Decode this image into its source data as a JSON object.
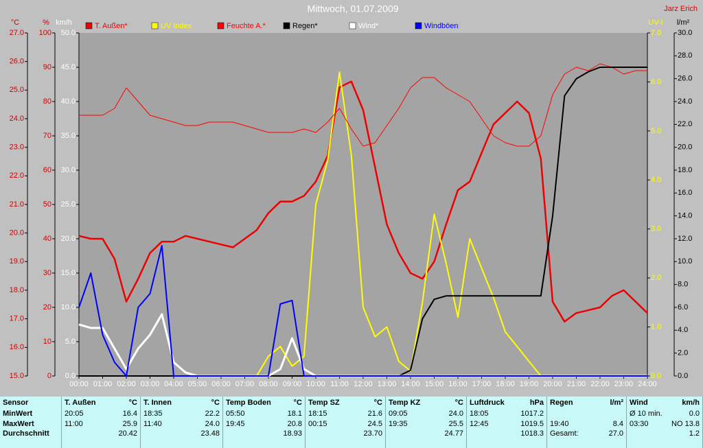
{
  "chart_data": {
    "type": "line",
    "title": "Mittwoch, 01.07.2009",
    "author": "Jarz Erich",
    "xlim": [
      0,
      24
    ],
    "xticks": [
      {
        "value": 0,
        "label": "00:00"
      },
      {
        "value": 1,
        "label": "01:00"
      },
      {
        "value": 2,
        "label": "02:00"
      },
      {
        "value": 3,
        "label": "03:00"
      },
      {
        "value": 4,
        "label": "04:00"
      },
      {
        "value": 5,
        "label": "05:00"
      },
      {
        "value": 6,
        "label": "06:00"
      },
      {
        "value": 7,
        "label": "07:00"
      },
      {
        "value": 8,
        "label": "08:00"
      },
      {
        "value": 9,
        "label": "09:00"
      },
      {
        "value": 10,
        "label": "10:00"
      },
      {
        "value": 11,
        "label": "11:00"
      },
      {
        "value": 12,
        "label": "12:00"
      },
      {
        "value": 13,
        "label": "13:00"
      },
      {
        "value": 14,
        "label": "14:00"
      },
      {
        "value": 15,
        "label": "15:00"
      },
      {
        "value": 16,
        "label": "16:00"
      },
      {
        "value": 17,
        "label": "17:00"
      },
      {
        "value": 18,
        "label": "18:00"
      },
      {
        "value": 19,
        "label": "19:00"
      },
      {
        "value": 20,
        "label": "20:00"
      },
      {
        "value": 21,
        "label": "21:00"
      },
      {
        "value": 22,
        "label": "22:00"
      },
      {
        "value": 23,
        "label": "23:00"
      },
      {
        "value": 24,
        "label": "24:00"
      }
    ],
    "axes": [
      {
        "label": "°C",
        "color": "#d00000",
        "lim": [
          15,
          27
        ],
        "ticks": [
          {
            "value": 15,
            "label": "15.0"
          },
          {
            "value": 16,
            "label": "16.0"
          },
          {
            "value": 17,
            "label": "17.0"
          },
          {
            "value": 18,
            "label": "18.0"
          },
          {
            "value": 19,
            "label": "19.0"
          },
          {
            "value": 20,
            "label": "20.0"
          },
          {
            "value": 21,
            "label": "21.0"
          },
          {
            "value": 22,
            "label": "22.0"
          },
          {
            "value": 23,
            "label": "23.0"
          },
          {
            "value": 24,
            "label": "24.0"
          },
          {
            "value": 25,
            "label": "25.0"
          },
          {
            "value": 26,
            "label": "26.0"
          },
          {
            "value": 27,
            "label": "27.0"
          }
        ]
      },
      {
        "label": "%",
        "color": "#d00000",
        "lim": [
          0,
          100
        ],
        "ticks": [
          0,
          10,
          20,
          30,
          40,
          50,
          60,
          70,
          80,
          90,
          100
        ]
      },
      {
        "label": "km/h",
        "color": "#ffffff",
        "lim": [
          0,
          50
        ],
        "ticks": [
          {
            "value": 0,
            "label": "0.0"
          },
          {
            "value": 5,
            "label": "5.0"
          },
          {
            "value": 10,
            "label": "10.0"
          },
          {
            "value": 15,
            "label": "15.0"
          },
          {
            "value": 20,
            "label": "20.0"
          },
          {
            "value": 25,
            "label": "25.0"
          },
          {
            "value": 30,
            "label": "30.0"
          },
          {
            "value": 35,
            "label": "35.0"
          },
          {
            "value": 40,
            "label": "40.0"
          },
          {
            "value": 45,
            "label": "45.0"
          },
          {
            "value": 50,
            "label": "50.0"
          }
        ]
      },
      {
        "label": "UV-I",
        "color": "#ffff00",
        "lim": [
          0,
          7
        ],
        "ticks": [
          {
            "value": 0,
            "label": "0.0"
          },
          {
            "value": 1,
            "label": "1.0"
          },
          {
            "value": 2,
            "label": "2.0"
          },
          {
            "value": 3,
            "label": "3.0"
          },
          {
            "value": 4,
            "label": "4.0"
          },
          {
            "value": 5,
            "label": "5.0"
          },
          {
            "value": 6,
            "label": "6.0"
          },
          {
            "value": 7,
            "label": "7.0"
          }
        ]
      },
      {
        "label": "l/m²",
        "color": "#000000",
        "lim": [
          0,
          30
        ],
        "ticks": [
          {
            "value": 0,
            "label": "0.0"
          },
          {
            "value": 2,
            "label": "2.0"
          },
          {
            "value": 4,
            "label": "4.0"
          },
          {
            "value": 6,
            "label": "6.0"
          },
          {
            "value": 8,
            "label": "8.0"
          },
          {
            "value": 10,
            "label": "10.0"
          },
          {
            "value": 12,
            "label": "12.0"
          },
          {
            "value": 14,
            "label": "14.0"
          },
          {
            "value": 16,
            "label": "16.0"
          },
          {
            "value": 18,
            "label": "18.0"
          },
          {
            "value": 20,
            "label": "20.0"
          },
          {
            "value": 22,
            "label": "22.0"
          },
          {
            "value": 24,
            "label": "24.0"
          },
          {
            "value": 26,
            "label": "26.0"
          },
          {
            "value": 28,
            "label": "28.0"
          },
          {
            "value": 30,
            "label": "30.0"
          }
        ]
      }
    ],
    "x": [
      0,
      0.5,
      1,
      1.5,
      2,
      2.5,
      3,
      3.5,
      4,
      4.5,
      5,
      5.5,
      6,
      6.5,
      7,
      7.5,
      8,
      8.5,
      9,
      9.5,
      10,
      10.5,
      11,
      11.5,
      12,
      12.5,
      13,
      13.5,
      14,
      14.5,
      15,
      15.5,
      16,
      16.5,
      17,
      17.5,
      18,
      18.5,
      19,
      19.5,
      20,
      20.5,
      21,
      21.5,
      22,
      22.5,
      23,
      23.5,
      24
    ],
    "series": [
      {
        "name": "T. Außen*",
        "color": "#ee0000",
        "axis": 0,
        "width": 2.5,
        "values": [
          19.9,
          19.8,
          19.8,
          19.1,
          17.6,
          18.4,
          19.3,
          19.7,
          19.7,
          19.9,
          19.8,
          19.7,
          19.6,
          19.5,
          19.8,
          20.1,
          20.7,
          21.1,
          21.1,
          21.3,
          21.8,
          22.7,
          25.1,
          25.3,
          24.3,
          22.3,
          20.3,
          19.3,
          18.6,
          18.4,
          19.0,
          20.3,
          21.5,
          21.8,
          22.8,
          23.8,
          24.2,
          24.6,
          24.2,
          22.6,
          17.6,
          16.9,
          17.2,
          17.3,
          17.4,
          17.8,
          18.0,
          17.6,
          17.2
        ]
      },
      {
        "name": "UV Index",
        "color": "#ffff00",
        "axis": 3,
        "width": 2,
        "values": [
          0,
          0,
          0,
          0,
          0,
          0,
          0,
          0,
          0,
          0,
          0,
          0,
          0,
          0,
          0,
          0,
          0.4,
          0.6,
          0.2,
          0.4,
          3.5,
          4.4,
          6.2,
          4.5,
          1.4,
          0.8,
          1.0,
          0.3,
          0.1,
          1.5,
          3.3,
          2.3,
          1.2,
          2.8,
          2.2,
          1.6,
          0.9,
          0.6,
          0.3,
          0.0,
          0,
          0,
          0,
          0,
          0,
          0,
          0,
          0,
          0
        ]
      },
      {
        "name": "Feuchte A.*",
        "color": "#ff0000",
        "axis": 1,
        "width": 1,
        "values": [
          76,
          76,
          76,
          78,
          84,
          80,
          76,
          75,
          74,
          73,
          73,
          74,
          74,
          74,
          73,
          72,
          71,
          71,
          71,
          72,
          71,
          74,
          78,
          72,
          67,
          68,
          73,
          78,
          84,
          87,
          87,
          84,
          82,
          80,
          75,
          70,
          68,
          67,
          67,
          70,
          82,
          88,
          90,
          89,
          91,
          90,
          88,
          89,
          89
        ]
      },
      {
        "name": "Regen*",
        "color": "#000000",
        "axis": 4,
        "width": 2,
        "values": [
          0,
          0,
          0,
          0,
          0,
          0,
          0,
          0,
          0,
          0,
          0,
          0,
          0,
          0,
          0,
          0,
          0,
          0,
          0,
          0,
          0,
          0,
          0,
          0,
          0,
          0,
          0,
          0,
          0.5,
          5.0,
          6.7,
          7.0,
          7.0,
          7.0,
          7.0,
          7.0,
          7.0,
          7.0,
          7.0,
          7.0,
          14.0,
          24.5,
          26.0,
          26.6,
          27.0,
          27.0,
          27.0,
          27.0,
          27.0
        ]
      },
      {
        "name": "Wind*",
        "color": "#ffffff",
        "axis": 2,
        "width": 3,
        "values": [
          7.5,
          7.0,
          7.0,
          4.0,
          1.0,
          4.0,
          6.0,
          9.0,
          2.0,
          0.5,
          0,
          0,
          0,
          0,
          0,
          0,
          0,
          1.0,
          5.5,
          1.0,
          0,
          0,
          0,
          0,
          0,
          0,
          0,
          0,
          0,
          0,
          0,
          0,
          0,
          0,
          0,
          0,
          0,
          0,
          0,
          0,
          0,
          0,
          0,
          0,
          0,
          0,
          0,
          0,
          0
        ]
      },
      {
        "name": "Windböen",
        "color": "#0000ff",
        "axis": 2,
        "width": 2,
        "values": [
          10,
          15,
          6,
          2,
          0,
          10,
          12,
          19,
          0,
          0,
          0,
          0,
          0,
          0,
          0,
          0,
          0,
          10.5,
          11,
          0,
          0,
          0,
          0,
          0,
          0,
          0,
          0,
          0,
          0,
          0,
          0,
          0,
          0,
          0,
          0,
          0,
          0,
          0,
          0,
          0,
          0,
          0,
          0,
          0,
          0,
          0,
          0,
          0,
          0
        ]
      }
    ]
  },
  "table": {
    "sensor_label": "Sensor",
    "row_labels": [
      "MinWert",
      "MaxWert",
      "Durchschnitt"
    ],
    "sections": [
      {
        "title": "T. Außen",
        "unit": "°C",
        "rows": [
          [
            "20:05",
            "16.4"
          ],
          [
            "11:00",
            "25.9"
          ],
          [
            "20.42"
          ]
        ]
      },
      {
        "title": "T. Innen",
        "unit": "°C",
        "rows": [
          [
            "18:35",
            "22.2"
          ],
          [
            "11:40",
            "24.0"
          ],
          [
            "23.48"
          ]
        ]
      },
      {
        "title": "Temp Boden",
        "unit": "°C",
        "rows": [
          [
            "05:50",
            "18.1"
          ],
          [
            "19:45",
            "20.8"
          ],
          [
            "18.93"
          ]
        ]
      },
      {
        "title": "Temp SZ",
        "unit": "°C",
        "rows": [
          [
            "18:15",
            "21.6"
          ],
          [
            "00:15",
            "24.5"
          ],
          [
            "23.70"
          ]
        ]
      },
      {
        "title": "Temp KZ",
        "unit": "°C",
        "rows": [
          [
            "09:05",
            "24.0"
          ],
          [
            "19:35",
            "25.5"
          ],
          [
            "24.77"
          ]
        ]
      },
      {
        "title": "Luftdruck",
        "unit": "hPa",
        "rows": [
          [
            "18:05",
            "1017.2"
          ],
          [
            "12:45",
            "1019.5"
          ],
          [
            "1018.3"
          ]
        ]
      },
      {
        "title": "Regen",
        "unit": "l/m²",
        "rows": [
          [],
          [
            "19:40",
            "8.4"
          ],
          [
            "Gesamt:",
            "27.0"
          ]
        ]
      },
      {
        "title": "Wind",
        "unit": "km/h",
        "rows": [
          [
            "Ø 10 min.",
            "0.0"
          ],
          [
            "03:30",
            "NO 13.8"
          ],
          [
            "1.2"
          ]
        ]
      }
    ]
  }
}
